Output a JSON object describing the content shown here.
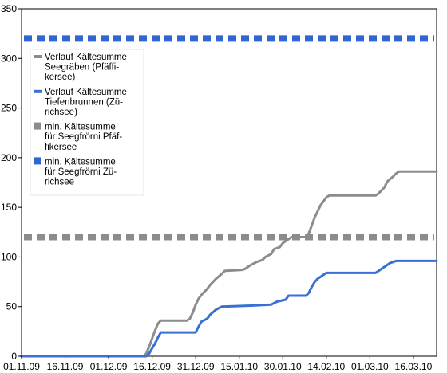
{
  "chart_data": {
    "type": "line",
    "title": "",
    "xlabel": "",
    "ylabel": "",
    "ylim": [
      0,
      350
    ],
    "yticks": [
      0,
      50,
      100,
      150,
      200,
      250,
      300,
      350
    ],
    "xlim": [
      "2009-11-01",
      "2010-03-24"
    ],
    "xticks": [
      "01.11.09",
      "16.11.09",
      "01.12.09",
      "16.12.09",
      "31.12.09",
      "15.01.10",
      "30.01.10",
      "14.02.10",
      "01.03.10",
      "16.03.10"
    ],
    "xtick_dates": [
      "2009-11-01",
      "2009-11-16",
      "2009-12-01",
      "2009-12-16",
      "2009-12-31",
      "2010-01-15",
      "2010-01-30",
      "2010-02-14",
      "2010-03-01",
      "2010-03-16"
    ],
    "grid": false,
    "legend_position": "left",
    "series": [
      {
        "name": "Verlauf Kältesumme Seegräben (Pfäffikersee)",
        "legend_lines": [
          "Verlauf Kältesumme",
          "Seegräben (Pfäffi-",
          "kersee)"
        ],
        "color": "#8c8c8c",
        "style": "solid",
        "points": [
          [
            "2009-11-01",
            0
          ],
          [
            "2009-12-13",
            0
          ],
          [
            "2009-12-14",
            3
          ],
          [
            "2009-12-15",
            10
          ],
          [
            "2009-12-16",
            18
          ],
          [
            "2009-12-17",
            26
          ],
          [
            "2009-12-18",
            33
          ],
          [
            "2009-12-19",
            36
          ],
          [
            "2009-12-28",
            36
          ],
          [
            "2009-12-29",
            38
          ],
          [
            "2009-12-30",
            44
          ],
          [
            "2009-12-31",
            52
          ],
          [
            "2010-01-01",
            58
          ],
          [
            "2010-01-02",
            62
          ],
          [
            "2010-01-04",
            68
          ],
          [
            "2010-01-05",
            72
          ],
          [
            "2010-01-07",
            78
          ],
          [
            "2010-01-09",
            83
          ],
          [
            "2010-01-10",
            86
          ],
          [
            "2010-01-16",
            87
          ],
          [
            "2010-01-17",
            88
          ],
          [
            "2010-01-19",
            92
          ],
          [
            "2010-01-21",
            95
          ],
          [
            "2010-01-23",
            97
          ],
          [
            "2010-01-24",
            100
          ],
          [
            "2010-01-26",
            103
          ],
          [
            "2010-01-27",
            108
          ],
          [
            "2010-01-29",
            110
          ],
          [
            "2010-01-30",
            114
          ],
          [
            "2010-02-01",
            118
          ],
          [
            "2010-02-02",
            120
          ],
          [
            "2010-02-07",
            120
          ],
          [
            "2010-02-08",
            124
          ],
          [
            "2010-02-09",
            132
          ],
          [
            "2010-02-10",
            140
          ],
          [
            "2010-02-11",
            146
          ],
          [
            "2010-02-12",
            152
          ],
          [
            "2010-02-13",
            156
          ],
          [
            "2010-02-14",
            160
          ],
          [
            "2010-02-15",
            162
          ],
          [
            "2010-03-03",
            162
          ],
          [
            "2010-03-04",
            164
          ],
          [
            "2010-03-06",
            170
          ],
          [
            "2010-03-07",
            176
          ],
          [
            "2010-03-09",
            181
          ],
          [
            "2010-03-10",
            184
          ],
          [
            "2010-03-11",
            186
          ],
          [
            "2010-03-24",
            186
          ]
        ]
      },
      {
        "name": "Verlauf Kältesumme Tiefenbrunnen (Zürichsee)",
        "legend_lines": [
          "Verlauf Kältesumme",
          "Tiefenbrunnen (Zü-",
          "richsee)"
        ],
        "color": "#3a6fd4",
        "style": "solid",
        "points": [
          [
            "2009-11-01",
            0
          ],
          [
            "2009-12-14",
            0
          ],
          [
            "2009-12-15",
            3
          ],
          [
            "2009-12-16",
            8
          ],
          [
            "2009-12-17",
            13
          ],
          [
            "2009-12-18",
            19
          ],
          [
            "2009-12-19",
            24
          ],
          [
            "2009-12-31",
            24
          ],
          [
            "2010-01-01",
            30
          ],
          [
            "2010-01-02",
            35
          ],
          [
            "2010-01-04",
            38
          ],
          [
            "2010-01-05",
            42
          ],
          [
            "2010-01-07",
            47
          ],
          [
            "2010-01-09",
            50
          ],
          [
            "2010-01-19",
            51
          ],
          [
            "2010-01-26",
            52
          ],
          [
            "2010-01-28",
            55
          ],
          [
            "2010-01-31",
            57
          ],
          [
            "2010-02-01",
            61
          ],
          [
            "2010-02-07",
            61
          ],
          [
            "2010-02-08",
            64
          ],
          [
            "2010-02-09",
            70
          ],
          [
            "2010-02-10",
            75
          ],
          [
            "2010-02-11",
            78
          ],
          [
            "2010-02-13",
            82
          ],
          [
            "2010-02-14",
            84
          ],
          [
            "2010-03-03",
            84
          ],
          [
            "2010-03-04",
            86
          ],
          [
            "2010-03-06",
            90
          ],
          [
            "2010-03-08",
            94
          ],
          [
            "2010-03-10",
            96
          ],
          [
            "2010-03-24",
            96
          ]
        ]
      }
    ],
    "thresholds": [
      {
        "name": "min. Kältesumme für Seegfrörni Pfäffikersee",
        "legend_lines": [
          "min. Kältesumme",
          "für Seegfrörni Pfäf-",
          "fikersee"
        ],
        "value": 120,
        "color": "#8c8c8c",
        "style": "dashed"
      },
      {
        "name": "min. Kältesumme für Seegfrörni Zürichsee",
        "legend_lines": [
          "min. Kältesumme",
          "für Seegfrörni Zü-",
          "richsee"
        ],
        "value": 320,
        "color": "#2f66d3",
        "style": "dashed"
      }
    ]
  }
}
